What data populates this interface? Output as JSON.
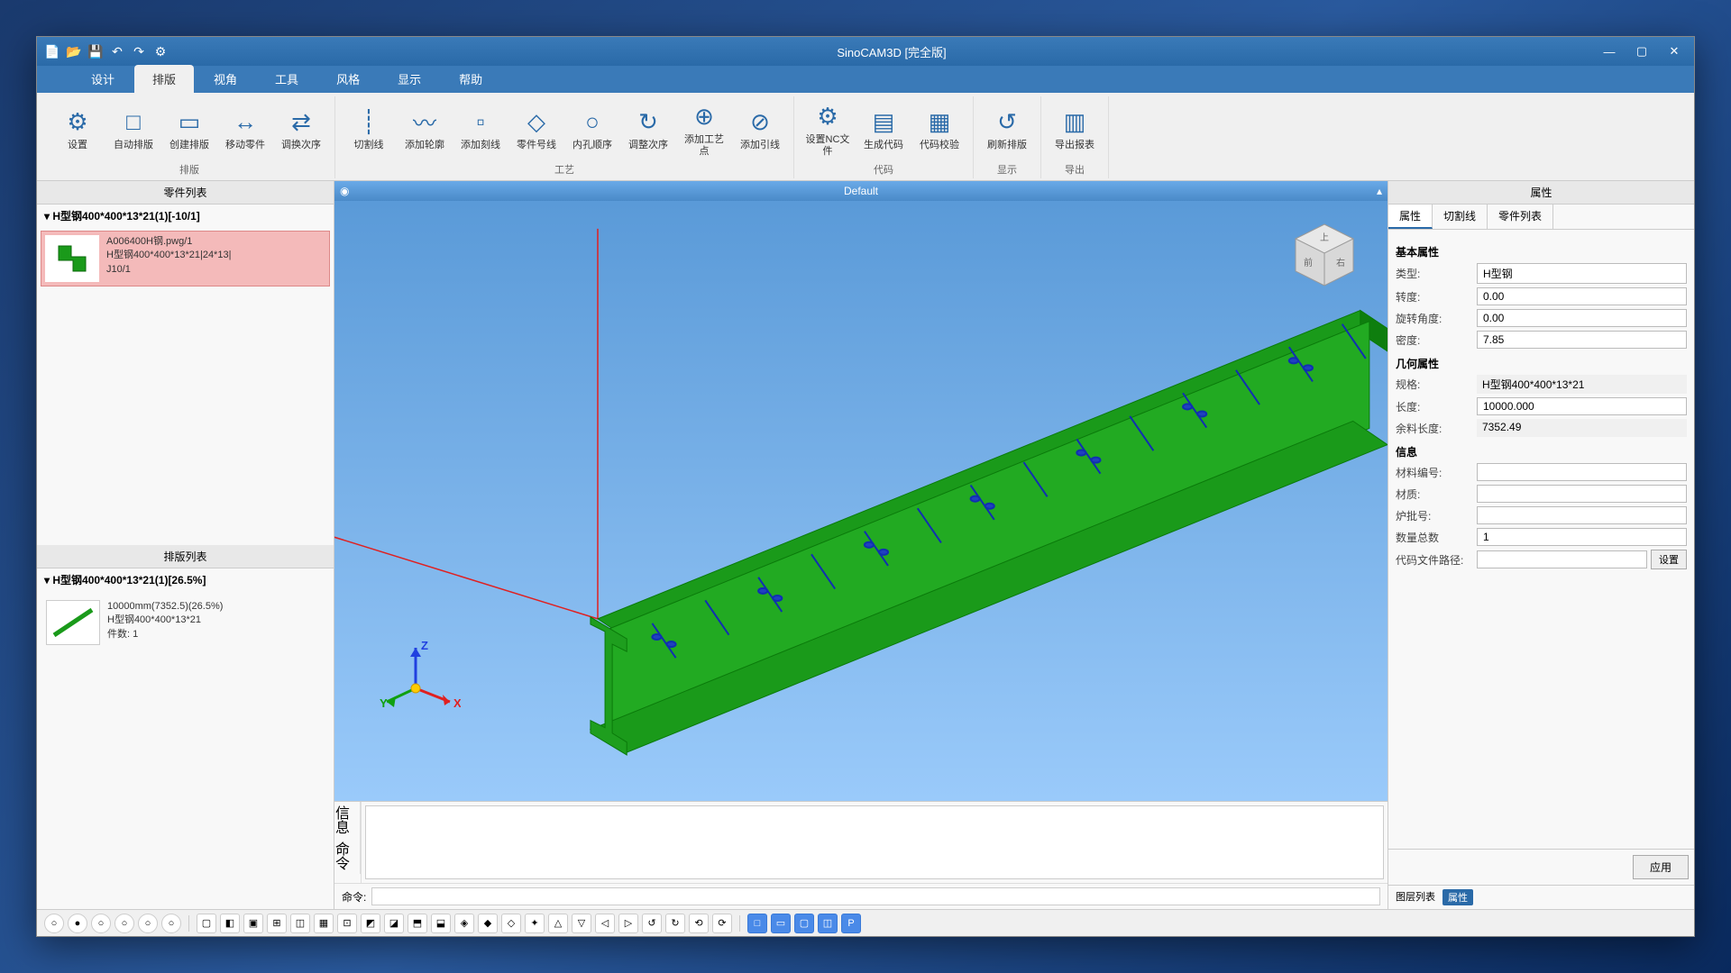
{
  "window": {
    "title": "SinoCAM3D [完全版]"
  },
  "menubar": {
    "tabs": [
      "设计",
      "排版",
      "视角",
      "工具",
      "风格",
      "显示",
      "帮助"
    ],
    "active": 1
  },
  "ribbon": {
    "groups": [
      {
        "label": "排版",
        "buttons": [
          {
            "icon": "⚙",
            "label": "设置"
          },
          {
            "icon": "□",
            "label": "自动排版"
          },
          {
            "icon": "▭",
            "label": "创建排版"
          },
          {
            "icon": "↔",
            "label": "移动零件"
          },
          {
            "icon": "⇄",
            "label": "调换次序"
          }
        ]
      },
      {
        "label": "工艺",
        "buttons": [
          {
            "icon": "┊",
            "label": "切割线"
          },
          {
            "icon": "〰",
            "label": "添加轮廓"
          },
          {
            "icon": "▫",
            "label": "添加刻线"
          },
          {
            "icon": "◇",
            "label": "零件号线"
          },
          {
            "icon": "○",
            "label": "内孔顺序"
          },
          {
            "icon": "↻",
            "label": "调整次序"
          },
          {
            "icon": "⊕",
            "label": "添加工艺点"
          },
          {
            "icon": "⊘",
            "label": "添加引线"
          }
        ]
      },
      {
        "label": "代码",
        "buttons": [
          {
            "icon": "⚙",
            "label": "设置NC文件"
          },
          {
            "icon": "▤",
            "label": "生成代码"
          },
          {
            "icon": "▦",
            "label": "代码校验"
          }
        ]
      },
      {
        "label": "显示",
        "buttons": [
          {
            "icon": "↺",
            "label": "刷新排版"
          }
        ]
      },
      {
        "label": "导出",
        "buttons": [
          {
            "icon": "▥",
            "label": "导出报表"
          }
        ]
      }
    ]
  },
  "leftPanel": {
    "partsHeader": "零件列表",
    "partsRoot": "H型钢400*400*13*21(1)[-10/1]",
    "partCard": {
      "line1": "A006400H钢.pwg/1",
      "line2": "H型钢400*400*13*21|24*13|",
      "line3": "J10/1"
    },
    "sheetsHeader": "排版列表",
    "sheetsRoot": "H型钢400*400*13*21(1)[26.5%]",
    "sheetCard": {
      "line1": "10000mm(7352.5)(26.5%)",
      "line2": "H型钢400*400*13*21",
      "line3": "件数: 1"
    }
  },
  "viewport": {
    "title": "Default",
    "beam": {
      "color": "#1a9a1a",
      "edgeColor": "#0a7a0a",
      "holeColor": "#2040c0",
      "scribeColor": "#1030b0",
      "axisRed": "#e02020",
      "bgTop": "#5a9ad8",
      "bgBottom": "#9acafa",
      "cubeFace": "#d8d8d8",
      "cubeEdge": "#999"
    },
    "axisLabels": {
      "x": "X",
      "y": "Y",
      "z": "Z"
    },
    "cubeLabels": {
      "top": "上",
      "front": "前",
      "right": "右"
    }
  },
  "console": {
    "tab1": "信息",
    "tab2": "命令",
    "cmdLabel": "命令:"
  },
  "rightPanel": {
    "title": "属性",
    "tabs": [
      "属性",
      "切割线",
      "零件列表"
    ],
    "activeTab": 0,
    "sections": {
      "basic": "基本属性",
      "geom": "几何属性",
      "info": "信息"
    },
    "rows": {
      "type": {
        "label": "类型:",
        "value": "H型钢"
      },
      "angle": {
        "label": "转度:",
        "value": "0.00"
      },
      "rotAngle": {
        "label": "旋转角度:",
        "value": "0.00"
      },
      "density": {
        "label": "密度:",
        "value": "7.85"
      },
      "spec": {
        "label": "规格:",
        "value": "H型钢400*400*13*21"
      },
      "length": {
        "label": "长度:",
        "value": "10000.000"
      },
      "remLength": {
        "label": "余料长度:",
        "value": "7352.49"
      },
      "matCode": {
        "label": "材料编号:",
        "value": ""
      },
      "material": {
        "label": "材质:",
        "value": ""
      },
      "heatNo": {
        "label": "炉批号:",
        "value": ""
      },
      "qty": {
        "label": "数量总数",
        "value": "1"
      },
      "codePath": {
        "label": "代码文件路径:",
        "value": "",
        "btn": "设置"
      }
    },
    "applyBtn": "应用",
    "bottomTabs": [
      "图层列表",
      "属性"
    ],
    "bottomActive": 1
  },
  "statusbar": {
    "round": [
      "○",
      "●",
      "○",
      "○",
      "○",
      "○"
    ],
    "square": [
      "▢",
      "◧",
      "▣",
      "⊞",
      "◫",
      "▦",
      "⊡",
      "◩",
      "◪",
      "⬒",
      "⬓",
      "◈",
      "◆",
      "◇",
      "✦",
      "△",
      "▽",
      "◁",
      "▷",
      "↺",
      "↻",
      "⟲",
      "⟳"
    ],
    "blue": [
      "□",
      "▭",
      "▢",
      "◫",
      "P"
    ]
  }
}
